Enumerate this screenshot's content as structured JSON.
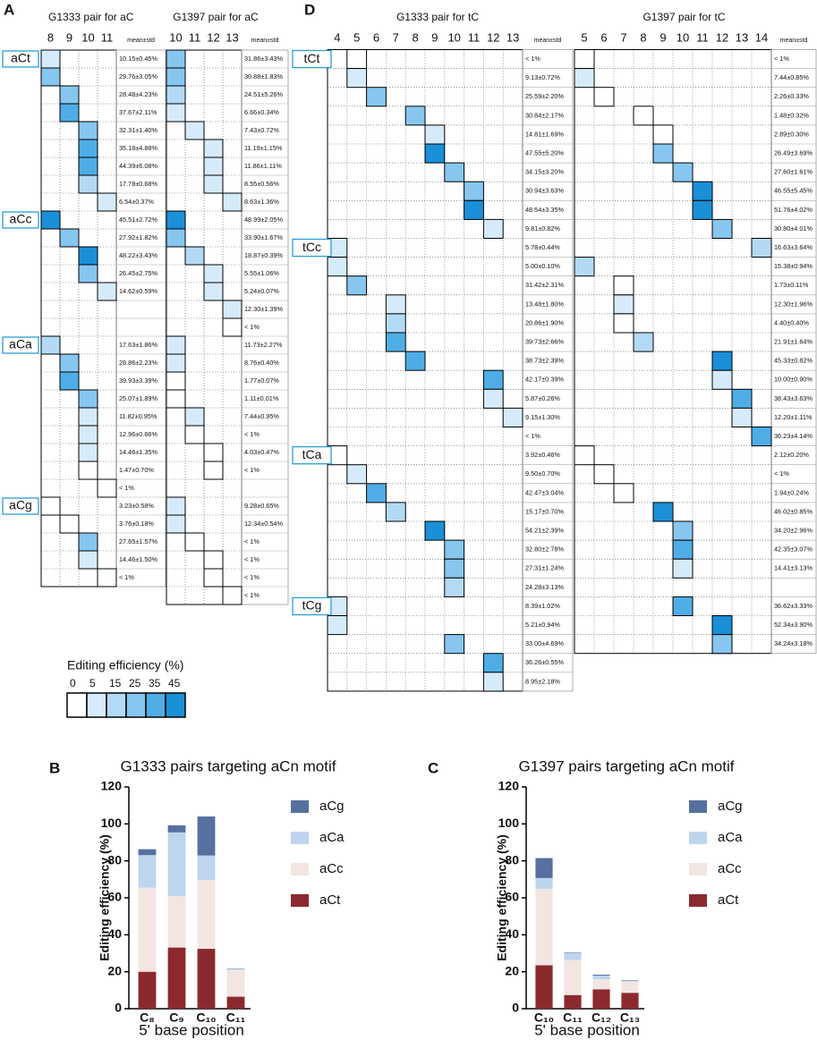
{
  "chart_data": [
    {
      "type": "heatmap-grid",
      "panel": "A",
      "color_scale": {
        "title": "Editing efficiency (%)",
        "ticks": [
          0,
          5,
          15,
          25,
          35,
          45
        ],
        "colors": [
          "#ffffff",
          "#d6ebfa",
          "#b3daf5",
          "#86c6ef",
          "#4fade6",
          "#1b8fd8"
        ]
      },
      "groups": [
        {
          "label": "aCt",
          "start": 0
        },
        {
          "label": "aCc",
          "start": 9
        },
        {
          "label": "aCa",
          "start": 16
        },
        {
          "label": "aCg",
          "start": 25
        }
      ],
      "subgrids": [
        {
          "title": "G1333 pair for aC",
          "columns": [
            8,
            9,
            10,
            11
          ],
          "stat_header": "mean±std",
          "rows": [
            {
              "col": 8,
              "value": 10.15,
              "label": "10.15±0.45%"
            },
            {
              "col": 8,
              "value": 29.76,
              "label": "29.76±3.05%"
            },
            {
              "col": 9,
              "value": 28.48,
              "label": "28.48±4.23%"
            },
            {
              "col": 9,
              "value": 37.67,
              "label": "37.67±2.11%"
            },
            {
              "col": 10,
              "value": 32.31,
              "label": "32.31±1.40%"
            },
            {
              "col": 10,
              "value": 35.18,
              "label": "35.18±4.88%"
            },
            {
              "col": 10,
              "value": 44.39,
              "label": "44.39±6.08%"
            },
            {
              "col": 10,
              "value": 17.78,
              "label": "17.78±0.68%"
            },
            {
              "col": 11,
              "value": 6.54,
              "label": "6.54±0.37%"
            },
            {
              "col": 8,
              "value": 45.51,
              "label": "45.51±2.72%"
            },
            {
              "col": 9,
              "value": 27.92,
              "label": "27.92±1.82%"
            },
            {
              "col": 10,
              "value": 48.22,
              "label": "48.22±3.43%"
            },
            {
              "col": 10,
              "value": 26.45,
              "label": "26.45±2.75%"
            },
            {
              "col": 11,
              "value": 14.62,
              "label": "14.62±0.59%"
            },
            null,
            null,
            {
              "col": 8,
              "value": 17.63,
              "label": "17.63±1.86%"
            },
            {
              "col": 9,
              "value": 28.86,
              "label": "28.86±2.23%"
            },
            {
              "col": 9,
              "value": 39.93,
              "label": "39.93±3.39%"
            },
            {
              "col": 10,
              "value": 25.07,
              "label": "25.07±1.89%"
            },
            {
              "col": 10,
              "value": 11.82,
              "label": "11.82±0.95%"
            },
            {
              "col": 10,
              "value": 12.96,
              "label": "12.96±0.66%"
            },
            {
              "col": 10,
              "value": 14.46,
              "label": "14.46±1.35%"
            },
            {
              "col": 10,
              "value": 1.47,
              "label": "1.47±0.70%"
            },
            {
              "col": 11,
              "label": "< 1%"
            },
            {
              "col": 8,
              "value": 3.23,
              "label": "3.23±0.58%"
            },
            {
              "col": 9,
              "value": 3.76,
              "label": "3.76±0.18%"
            },
            {
              "col": 10,
              "value": 27.65,
              "label": "27.65±1.57%"
            },
            {
              "col": 10,
              "value": 14.46,
              "label": "14.46±1.50%"
            },
            {
              "col": 11,
              "label": "< 1%"
            }
          ]
        },
        {
          "title": "G1397 pair for aC",
          "columns": [
            10,
            11,
            12,
            13
          ],
          "stat_header": "mean±std",
          "rows": [
            {
              "col": 10,
              "value": 31.86,
              "label": "31.86±3.43%"
            },
            {
              "col": 10,
              "value": 30.88,
              "label": "30.88±1.83%"
            },
            {
              "col": 10,
              "value": 24.51,
              "label": "24.51±5.26%"
            },
            {
              "col": 10,
              "value": 6.66,
              "label": "6.66±0.34%"
            },
            {
              "col": 11,
              "value": 7.43,
              "label": "7.43±0.72%"
            },
            {
              "col": 12,
              "value": 11.19,
              "label": "11.19±1.15%"
            },
            {
              "col": 12,
              "value": 11.86,
              "label": "11.86±1.11%"
            },
            {
              "col": 12,
              "value": 8.55,
              "label": "8.55±0.56%"
            },
            {
              "col": 13,
              "value": 8.63,
              "label": "8.63±1.36%"
            },
            {
              "col": 10,
              "value": 48.99,
              "label": "48.99±2.05%"
            },
            {
              "col": 10,
              "value": 33.9,
              "label": "33.90±1.67%"
            },
            {
              "col": 11,
              "value": 18.87,
              "label": "18.87±0.39%"
            },
            {
              "col": 12,
              "value": 5.55,
              "label": "5.55±1.06%"
            },
            {
              "col": 12,
              "value": 5.24,
              "label": "5.24±0.07%"
            },
            {
              "col": 13,
              "value": 12.3,
              "label": "12.30±1.39%"
            },
            {
              "col": 13,
              "label": "< 1%"
            },
            {
              "col": 10,
              "value": 11.73,
              "label": "11.73±2.27%"
            },
            {
              "col": 10,
              "value": 8.76,
              "label": "8.76±0.40%"
            },
            {
              "col": 10,
              "value": 1.77,
              "label": "1.77±0.07%"
            },
            {
              "col": 10,
              "value": 1.11,
              "label": "1.11±0.01%"
            },
            {
              "col": 11,
              "value": 7.44,
              "label": "7.44±0.95%"
            },
            {
              "col": 11,
              "label": "< 1%"
            },
            {
              "col": 12,
              "value": 4.03,
              "label": "4.03±0.47%"
            },
            {
              "col": 12,
              "label": "< 1%"
            },
            null,
            {
              "col": 10,
              "value": 9.28,
              "label": "9.28±0.65%"
            },
            {
              "col": 10,
              "value": 12.34,
              "label": "12.34±0.54%"
            },
            {
              "col": 11,
              "label": "< 1%"
            },
            {
              "col": 12,
              "label": "< 1%"
            },
            {
              "col": 12,
              "label": "< 1%"
            },
            {
              "col": 13,
              "label": "< 1%"
            }
          ]
        }
      ]
    },
    {
      "type": "heatmap-grid",
      "panel": "D",
      "groups": [
        {
          "label": "tCt",
          "start": 0
        },
        {
          "label": "tCc",
          "start": 10
        },
        {
          "label": "tCa",
          "start": 21
        },
        {
          "label": "tCg",
          "start": 29
        }
      ],
      "subgrids": [
        {
          "title": "G1333 pair for tC",
          "columns": [
            4,
            5,
            6,
            7,
            8,
            9,
            10,
            11,
            12,
            13
          ],
          "stat_header": "mean±std",
          "rows": [
            {
              "col": 5,
              "label": "< 1%"
            },
            {
              "col": 5,
              "value": 9.13,
              "label": "9.13±0.72%"
            },
            {
              "col": 6,
              "value": 25.59,
              "label": "25.59±2.20%"
            },
            {
              "col": 8,
              "value": 30.84,
              "label": "30.84±2.17%"
            },
            {
              "col": 9,
              "value": 14.81,
              "label": "14.81±1.69%"
            },
            {
              "col": 9,
              "value": 47.55,
              "label": "47.55±5.20%"
            },
            {
              "col": 10,
              "value": 34.15,
              "label": "34.15±3.20%"
            },
            {
              "col": 11,
              "value": 30.94,
              "label": "30.94±3.63%"
            },
            {
              "col": 11,
              "value": 48.54,
              "label": "48.54±3.35%"
            },
            {
              "col": 12,
              "value": 9.81,
              "label": "9.81±0.82%"
            },
            {
              "col": 4,
              "value": 5.78,
              "label": "5.78±0.44%"
            },
            {
              "col": 4,
              "value": 5.0,
              "label": "5.00±0.10%"
            },
            {
              "col": 5,
              "value": 31.42,
              "label": "31.42±2.31%"
            },
            {
              "col": 7,
              "value": 13.48,
              "label": "13.48±1.80%"
            },
            {
              "col": 7,
              "value": 20.86,
              "label": "20.86±1.90%"
            },
            {
              "col": 7,
              "value": 39.73,
              "label": "39.73±2.66%"
            },
            {
              "col": 8,
              "value": 38.73,
              "label": "38.73±2.39%"
            },
            {
              "col": 12,
              "value": 42.17,
              "label": "42.17±0.39%"
            },
            {
              "col": 12,
              "value": 5.87,
              "label": "5.87±0.26%"
            },
            {
              "col": 13,
              "value": 9.15,
              "label": "9.15±1.30%"
            },
            {
              "label": "< 1%"
            },
            {
              "col": 4,
              "value": 3.92,
              "label": "3.92±0.46%"
            },
            {
              "col": 5,
              "value": 9.5,
              "label": "9.50±0.70%"
            },
            {
              "col": 6,
              "value": 42.47,
              "label": "42.47±3.04%"
            },
            {
              "col": 7,
              "value": 15.17,
              "label": "15.17±0.70%"
            },
            {
              "col": 9,
              "value": 54.21,
              "label": "54.21±2.39%"
            },
            {
              "col": 10,
              "value": 32.8,
              "label": "32.80±2.78%"
            },
            {
              "col": 10,
              "value": 27.31,
              "label": "27.31±1.24%"
            },
            {
              "col": 10,
              "value": 24.28,
              "label": "24.28±3.13%"
            },
            {
              "col": 4,
              "value": 8.39,
              "label": "8.39±1.02%"
            },
            {
              "col": 4,
              "value": 5.21,
              "label": "5.21±0.94%"
            },
            {
              "col": 10,
              "value": 33.0,
              "label": "33.00±4.69%"
            },
            {
              "col": 12,
              "value": 36.26,
              "label": "36.26±0.55%"
            },
            {
              "col": 12,
              "value": 8.95,
              "label": "8.95±2.18%"
            }
          ]
        },
        {
          "title": "G1397 pair for tC",
          "columns": [
            5,
            6,
            7,
            8,
            9,
            10,
            11,
            12,
            13,
            14
          ],
          "stat_header": "mean±std",
          "rows": [
            {
              "col": 5,
              "label": "< 1%"
            },
            {
              "col": 5,
              "value": 7.44,
              "label": "7.44±0.85%"
            },
            {
              "col": 6,
              "value": 2.26,
              "label": "2.26±0.33%"
            },
            {
              "col": 8,
              "value": 1.48,
              "label": "1.48±0.32%"
            },
            {
              "col": 9,
              "value": 2.89,
              "label": "2.89±0.30%"
            },
            {
              "col": 9,
              "value": 26.49,
              "label": "26.49±3.69%"
            },
            {
              "col": 10,
              "value": 27.6,
              "label": "27.60±1.61%"
            },
            {
              "col": 11,
              "value": 46.55,
              "label": "46.55±5.45%"
            },
            {
              "col": 11,
              "value": 51.76,
              "label": "51.76±4.02%"
            },
            {
              "col": 12,
              "value": 30.8,
              "label": "30.80±4.01%"
            },
            {
              "col": 14,
              "value": 16.63,
              "label": "16.63±3.64%"
            },
            {
              "col": 5,
              "value": 15.38,
              "label": "15.38±0.94%"
            },
            {
              "col": 7,
              "value": 1.73,
              "label": "1.73±0.11%"
            },
            {
              "col": 7,
              "value": 12.3,
              "label": "12.30±1.96%"
            },
            {
              "col": 7,
              "value": 4.4,
              "label": "4.40±0.40%"
            },
            {
              "col": 8,
              "value": 21.91,
              "label": "21.91±1.64%"
            },
            {
              "col": 12,
              "value": 45.33,
              "label": "45.33±0.82%"
            },
            {
              "col": 12,
              "value": 10.0,
              "label": "10.00±0.90%"
            },
            {
              "col": 13,
              "value": 38.43,
              "label": "38.43±3.63%"
            },
            {
              "col": 13,
              "value": 12.2,
              "label": "12.20±1.11%"
            },
            {
              "col": 14,
              "value": 36.23,
              "label": "36.23±4.14%"
            },
            {
              "col": 5,
              "value": 2.12,
              "label": "2.12±0.20%"
            },
            {
              "col": 6,
              "label": "< 1%"
            },
            {
              "col": 7,
              "value": 1.94,
              "label": "1.94±0.24%"
            },
            {
              "col": 9,
              "value": 46.02,
              "label": "46.02±0.85%"
            },
            {
              "col": 10,
              "value": 34.2,
              "label": "34.20±2.96%"
            },
            {
              "col": 10,
              "value": 42.35,
              "label": "42.35±3.07%"
            },
            {
              "col": 10,
              "value": 14.41,
              "label": "14.41±3.13%"
            },
            null,
            {
              "col": 10,
              "value": 36.62,
              "label": "36.62±3.33%"
            },
            {
              "col": 12,
              "value": 52.34,
              "label": "52.34±3.90%"
            },
            {
              "col": 12,
              "value": 34.24,
              "label": "34.24±3.18%"
            }
          ]
        }
      ]
    },
    {
      "type": "stacked-bar",
      "panel": "B",
      "title": "G1333 pairs targeting aCn motif",
      "categories": [
        "C₈",
        "C₉",
        "C₁₀",
        "C₁₁"
      ],
      "series": [
        {
          "name": "aCt",
          "color": "#8b2a2e",
          "values": [
            20,
            33.1,
            32.4,
            6.5
          ]
        },
        {
          "name": "aCc",
          "color": "#f3e5e1",
          "values": [
            45.5,
            27.9,
            37.3,
            14.6
          ]
        },
        {
          "name": "aCa",
          "color": "#bdd5ee",
          "values": [
            17.6,
            34.4,
            13.2,
            0.4
          ]
        },
        {
          "name": "aCg",
          "color": "#56709f",
          "values": [
            3.2,
            3.8,
            21.1,
            0.2
          ]
        }
      ],
      "ylim": [
        0,
        120
      ],
      "yticks": [
        0,
        20,
        40,
        60,
        80,
        100,
        120
      ],
      "ylabel": "Editing efficiency (%)",
      "xlabel": "5' base position"
    },
    {
      "type": "stacked-bar",
      "panel": "C",
      "title": "G1397 pairs targeting aCn motif",
      "categories": [
        "C₁₀",
        "C₁₁",
        "C₁₂",
        "C₁₃"
      ],
      "series": [
        {
          "name": "aCt",
          "color": "#8b2a2e",
          "values": [
            23.5,
            7.4,
            10.5,
            8.6
          ]
        },
        {
          "name": "aCc",
          "color": "#f3e5e1",
          "values": [
            41.4,
            18.9,
            5.4,
            6.2
          ]
        },
        {
          "name": "aCa",
          "color": "#bdd5ee",
          "values": [
            5.8,
            3.7,
            2.0,
            0.3
          ]
        },
        {
          "name": "aCg",
          "color": "#56709f",
          "values": [
            10.8,
            0.3,
            0.5,
            0.3
          ]
        }
      ],
      "ylim": [
        0,
        120
      ],
      "yticks": [
        0,
        20,
        40,
        60,
        80,
        100,
        120
      ],
      "ylabel": "Editing efficiency (%)",
      "xlabel": "5' base position"
    }
  ]
}
